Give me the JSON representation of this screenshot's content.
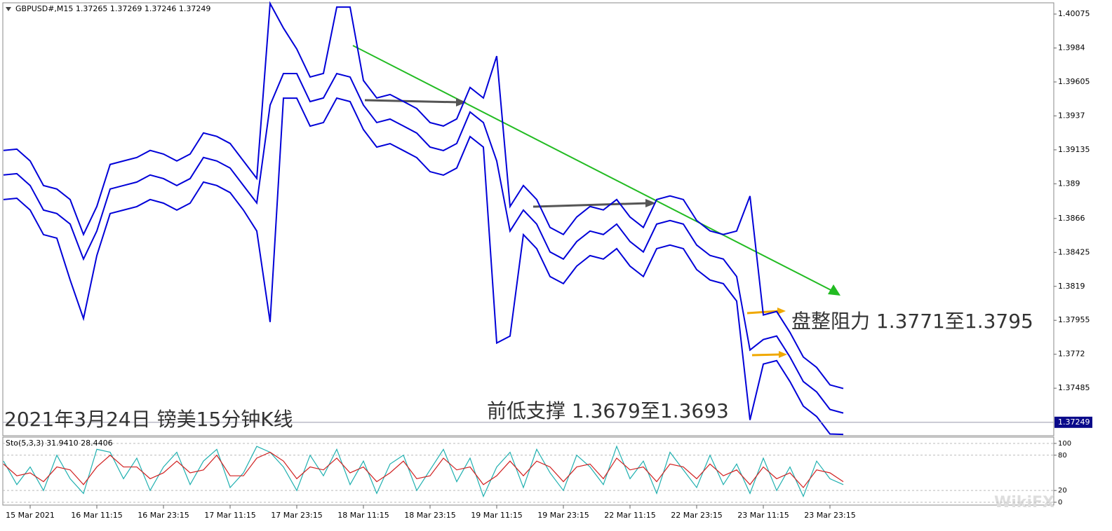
{
  "chart_data": [
    {
      "type": "line",
      "title": "GBPUSD#,M15  1.37265 1.37269 1.37246 1.37249",
      "categories": [
        null,
        null,
        "15 Mar 2021",
        null,
        null,
        null,
        null,
        "16 Mar 11:15",
        null,
        null,
        null,
        null,
        "16 Mar 23:15",
        null,
        null,
        null,
        null,
        "17 Mar 11:15",
        null,
        null,
        null,
        null,
        "17 Mar 23:15",
        null,
        null,
        null,
        null,
        "18 Mar 11:15",
        null,
        null,
        null,
        null,
        "18 Mar 23:15",
        null,
        null,
        null,
        null,
        "19 Mar 11:15",
        null,
        null,
        null,
        null,
        "19 Mar 23:15",
        null,
        null,
        null,
        null,
        "22 Mar 11:15",
        null,
        null,
        null,
        null,
        "22 Mar 23:15",
        null,
        null,
        null,
        null,
        "23 Mar 11:15",
        null,
        null,
        null,
        null,
        "23 Mar 23:15",
        null
      ],
      "series": [
        {
          "color": "#0000d8",
          "values": [
            1.39131,
            1.3914,
            1.39058,
            1.38888,
            1.38864,
            1.38791,
            1.38549,
            1.38743,
            1.39034,
            1.39058,
            1.39082,
            1.39131,
            1.39106,
            1.39058,
            1.39106,
            1.39252,
            1.39228,
            1.39179,
            1.39058,
            1.38937,
            1.40148,
            1.39978,
            1.39833,
            1.39639,
            1.39664,
            1.40123,
            1.40123,
            1.39615,
            1.39494,
            1.39518,
            1.3947,
            1.39421,
            1.39324,
            1.393,
            1.39349,
            1.39567,
            1.39494,
            1.39784,
            1.38743,
            1.38888,
            1.38791,
            1.38598,
            1.38549,
            1.3867,
            1.38743,
            1.38719,
            1.38791,
            1.3867,
            1.38598,
            1.38791,
            1.38816,
            1.38791,
            1.38646,
            1.38574,
            1.38549,
            1.38573,
            1.38815,
            1.37992,
            1.38016,
            1.37871,
            1.37701,
            1.37629,
            1.37508,
            1.37483
          ]
        },
        {
          "color": "#0000d8",
          "values": [
            1.38961,
            1.3897,
            1.38888,
            1.38718,
            1.38694,
            1.38621,
            1.38379,
            1.38573,
            1.38864,
            1.38888,
            1.38912,
            1.38961,
            1.38936,
            1.38888,
            1.38936,
            1.39082,
            1.39058,
            1.39009,
            1.38888,
            1.38767,
            1.39445,
            1.39663,
            1.39663,
            1.39469,
            1.39494,
            1.39663,
            1.39639,
            1.39445,
            1.39324,
            1.39348,
            1.393,
            1.39251,
            1.39154,
            1.3913,
            1.39179,
            1.39397,
            1.39324,
            1.39058,
            1.38573,
            1.38718,
            1.38621,
            1.38428,
            1.38379,
            1.385,
            1.38573,
            1.38549,
            1.38621,
            1.385,
            1.38428,
            1.38621,
            1.38646,
            1.38621,
            1.38476,
            1.38404,
            1.38379,
            1.38258,
            1.37749,
            1.37822,
            1.37846,
            1.37701,
            1.37531,
            1.37459,
            1.37338,
            1.37313
          ]
        },
        {
          "color": "#0000d8",
          "values": [
            1.38791,
            1.388,
            1.38718,
            1.38548,
            1.38524,
            1.38234,
            1.37967,
            1.38403,
            1.38694,
            1.38718,
            1.38742,
            1.38791,
            1.38766,
            1.38718,
            1.38766,
            1.38912,
            1.38888,
            1.38839,
            1.38718,
            1.38573,
            1.37943,
            1.39493,
            1.39493,
            1.39299,
            1.39324,
            1.39493,
            1.39469,
            1.39275,
            1.39154,
            1.39178,
            1.3913,
            1.39081,
            1.38984,
            1.3896,
            1.39009,
            1.39227,
            1.39154,
            1.37798,
            1.37846,
            1.38548,
            1.38451,
            1.38258,
            1.38209,
            1.3833,
            1.38403,
            1.38379,
            1.38451,
            1.3833,
            1.38258,
            1.38451,
            1.38476,
            1.38451,
            1.38306,
            1.38234,
            1.38209,
            1.38088,
            1.37265,
            1.37652,
            1.37676,
            1.37531,
            1.37361,
            1.37289,
            1.37168,
            1.37165
          ]
        }
      ],
      "ylim": [
        1.37156,
        1.40148
      ],
      "yticks": [
        1.40075,
        1.3984,
        1.39605,
        1.3937,
        1.39135,
        1.389,
        1.3866,
        1.38425,
        1.3819,
        1.37955,
        1.3772,
        1.37485
      ],
      "last_price": 1.37249,
      "annotations": [
        "盘整阻力 1.3771至1.3795",
        "前低支撑 1.3679至1.3693",
        "2021年3月24日 镑美15分钟K线"
      ],
      "watermark": "WikiFX"
    },
    {
      "type": "line",
      "title": "Sto(5,3,3) 31.9410 28.4406",
      "series": [
        {
          "color": "#20b0b0",
          "values": [
            70,
            30,
            60,
            20,
            80,
            40,
            15,
            90,
            85,
            40,
            75,
            20,
            60,
            85,
            30,
            70,
            90,
            25,
            50,
            95,
            85,
            60,
            20,
            80,
            45,
            90,
            30,
            70,
            15,
            65,
            80,
            20,
            55,
            90,
            35,
            75,
            10,
            60,
            85,
            25,
            90,
            50,
            20,
            80,
            60,
            30,
            95,
            40,
            70,
            15,
            85,
            55,
            25,
            80,
            30,
            65,
            15,
            75,
            20,
            60,
            10,
            70,
            40,
            30
          ]
        },
        {
          "color": "#d02020",
          "values": [
            65,
            45,
            50,
            35,
            60,
            55,
            30,
            60,
            80,
            60,
            60,
            40,
            50,
            70,
            50,
            55,
            80,
            45,
            45,
            75,
            85,
            70,
            40,
            60,
            55,
            75,
            50,
            60,
            35,
            50,
            70,
            40,
            45,
            75,
            55,
            60,
            30,
            45,
            70,
            45,
            70,
            60,
            35,
            60,
            65,
            40,
            75,
            55,
            60,
            35,
            65,
            60,
            40,
            65,
            45,
            55,
            30,
            60,
            40,
            50,
            25,
            55,
            50,
            35
          ]
        }
      ],
      "ylim": [
        -3.6,
        109.5
      ],
      "yticks": [
        100,
        80,
        20,
        0
      ]
    }
  ]
}
